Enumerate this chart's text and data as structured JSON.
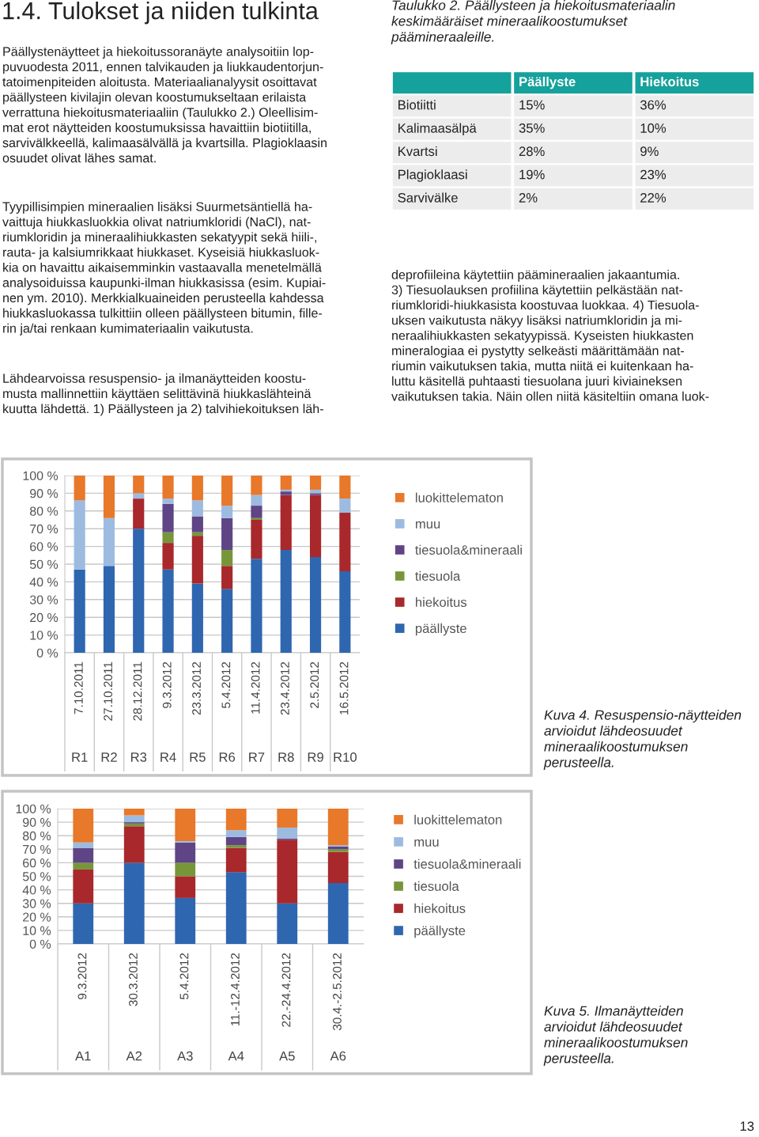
{
  "chart_data": [
    {
      "type": "other",
      "title": "1.4. Tulokset ja niiden tulkinta",
      "annotations": [
        "Päällystenäytteet ja hiekoitussoranäyte analysoitiin lop-\npuvuodesta 2011, ennen talvikauden ja liukkaudentorjun-\ntatoimenpiteiden aloitusta. Materiaalianalyysit osoittavat\npäällysteen kivilajin olevan koostumukseltaan erilaista\nverrattuna hiekoitusmateriaaliin (Taulukko 2.) Oleellisim-\nmat erot näytteiden koostumuksissa havaittiin biotiitilla,\nsarvivälkkeellä, kalimaasälvällä ja kvartsilla. Plagioklaasin\nosuudet olivat lähes samat.",
        "Tyypillisimpien mineraalien lisäksi Suurmetsäntiellä ha-\nvaittuja hiukkasluokkia olivat natriumkloridi (NaCl), nat-\nriumkloridin ja mineraalihiukkasten sekatyypit sekä hiili-,\nrauta- ja kalsiumrikkaat hiukkaset. Kyseisiä hiukkasluok-\nkia on havaittu aikaisemminkin vastaavalla menetelmällä\nanalysoiduissa kaupunki-ilman hiukkasissa (esim. Kupiai-\nnen ym. 2010). Merkkialkuaineiden perusteella kahdessa\nhiukkasluokassa tulkittiin olleen päällysteen bitumin, fille-\nrin ja/tai renkaan kumimateriaalin vaikutusta.",
        "Lähdearvoissa resuspensio- ja ilmanäytteiden koostu-\nmusta mallinnettiin käyttäen selittävinä hiukkaslähteinä\nkuutta lähdettä. 1) Päällysteen ja 2) talvihiekoituksen läh-"
      ]
    },
    {
      "type": "other",
      "title": "Taulukko 2. Päällysteen ja hiekoitusmateriaalin\nkeskimääräiset mineraalikoostumukset\npäämineraaleille.",
      "categories": [
        "Päällyste",
        "Hiekoitus"
      ],
      "y_categories": [
        "Biotiitti",
        "Kalimaasälpä",
        "Kvartsi",
        "Plagioklaasi",
        "Sarvivälke"
      ],
      "cell_labels": [
        [
          "15%",
          "36%"
        ],
        [
          "35%",
          "10%"
        ],
        [
          "28%",
          "9%"
        ],
        [
          "19%",
          "23%"
        ],
        [
          "2%",
          "22%"
        ]
      ]
    },
    {
      "type": "other",
      "annotations": [
        "deprofiileina käytettiin päämineraalien jakaantumia.\n3) Tiesuolauksen profiilina käytettiin pelkästään nat-\nriumkloridi-hiukkasista koostuvaa luokkaa. 4) Tiesuola-\nuksen vaikutusta näkyy lisäksi natriumkloridin ja mi-\nneraalihiukkasten sekatyypissä. Kyseisten hiukkasten\nmineralogiaa ei pystytty selkeästi määrittämään nat-\nriumin vaikutuksen takia, mutta niitä ei kuitenkaan ha-\nluttu käsitellä puhtaasti tiesuolana juuri kiviaineksen\nvaikutuksen takia. Näin ollen niitä käsiteltiin omana luok-"
      ]
    },
    {
      "type": "bar",
      "stacked": true,
      "legend": "right",
      "grid": "y",
      "categories": [
        "7.10.2011\nR1",
        "27.10.2011\nR2",
        "28.12.2011\nR3",
        "9.3.2012\nR4",
        "23.3.2012\nR5",
        "5.4.2012\nR6",
        "11.4.2012\nR7",
        "23.4.2012\nR8",
        "2.5.2012\nR9",
        "16.5.2012\nR10"
      ],
      "ylim": [
        0,
        100
      ],
      "yticks": [
        {
          "value": 0,
          "label": "0 %"
        },
        {
          "value": 10,
          "label": "10 %"
        },
        {
          "value": 20,
          "label": "20 %"
        },
        {
          "value": 30,
          "label": "30 %"
        },
        {
          "value": 40,
          "label": "40 %"
        },
        {
          "value": 50,
          "label": "50 %"
        },
        {
          "value": 60,
          "label": "60 %"
        },
        {
          "value": 70,
          "label": "70 %"
        },
        {
          "value": 80,
          "label": "80 %"
        },
        {
          "value": 90,
          "label": "90 %"
        },
        {
          "value": 100,
          "label": "100 %"
        }
      ],
      "series": [
        {
          "name": "päällyste",
          "color": "#2e66b0",
          "values": [
            47,
            49,
            70,
            47,
            39,
            36,
            53,
            58,
            54,
            46
          ]
        },
        {
          "name": "hiekoitus",
          "color": "#a8282c",
          "values": [
            0,
            0,
            17,
            15,
            27,
            13,
            22,
            31,
            35,
            33
          ]
        },
        {
          "name": "tiesuola",
          "color": "#77963a",
          "values": [
            0,
            0,
            0,
            6,
            2,
            9,
            1,
            0,
            0,
            0
          ]
        },
        {
          "name": "tiesuola&mineraali",
          "color": "#5f4585",
          "values": [
            0,
            0,
            0,
            16,
            9,
            18,
            7,
            2,
            1,
            0
          ]
        },
        {
          "name": "muu",
          "color": "#9dbbe0",
          "values": [
            39,
            27,
            3,
            3,
            9,
            7,
            6,
            1,
            2,
            8
          ]
        },
        {
          "name": "luokittelematon",
          "color": "#e8782a",
          "values": [
            14,
            24,
            10,
            13,
            14,
            17,
            11,
            8,
            8,
            13
          ]
        }
      ],
      "annotations": [
        "Kuva 4. Resuspensio-näytteiden\narvioidut lähdeosuudet\nmineraalikoostumuksen\nperusteella."
      ]
    },
    {
      "type": "bar",
      "stacked": true,
      "legend": "right",
      "grid": "y",
      "categories": [
        "9.3.2012\nA1",
        "30.3.2012\nA2",
        "5.4.2012\nA3",
        "11.-12.4.2012\nA4",
        "22.-24.4.2012\nA5",
        "30.4.-2.5.2012\nA6"
      ],
      "ylim": [
        0,
        100
      ],
      "yticks": [
        {
          "value": 0,
          "label": "0 %"
        },
        {
          "value": 10,
          "label": "10 %"
        },
        {
          "value": 20,
          "label": "20 %"
        },
        {
          "value": 30,
          "label": "30 %"
        },
        {
          "value": 40,
          "label": "40 %"
        },
        {
          "value": 50,
          "label": "50 %"
        },
        {
          "value": 60,
          "label": "60 %"
        },
        {
          "value": 70,
          "label": "70 %"
        },
        {
          "value": 80,
          "label": "80 %"
        },
        {
          "value": 90,
          "label": "90 %"
        },
        {
          "value": 100,
          "label": "100 %"
        }
      ],
      "series": [
        {
          "name": "päällyste",
          "color": "#2e66b0",
          "values": [
            30,
            60,
            34,
            53,
            30,
            45
          ]
        },
        {
          "name": "hiekoitus",
          "color": "#a8282c",
          "values": [
            25,
            27,
            16,
            18,
            47,
            23
          ]
        },
        {
          "name": "tiesuola",
          "color": "#77963a",
          "values": [
            5,
            2,
            10,
            2,
            0,
            2
          ]
        },
        {
          "name": "tiesuola&mineraali",
          "color": "#5f4585",
          "values": [
            11,
            1,
            15,
            6,
            1,
            2
          ]
        },
        {
          "name": "muu",
          "color": "#9dbbe0",
          "values": [
            4,
            5,
            1,
            5,
            8,
            1
          ]
        },
        {
          "name": "luokittelematon",
          "color": "#e8782a",
          "values": [
            25,
            5,
            24,
            16,
            14,
            27
          ]
        }
      ],
      "annotations": [
        "Kuva 5. Ilmanäytteiden\narvioidut lähdeosuudet\nmineraalikoostumuksen\nperusteella.",
        "13"
      ]
    }
  ]
}
